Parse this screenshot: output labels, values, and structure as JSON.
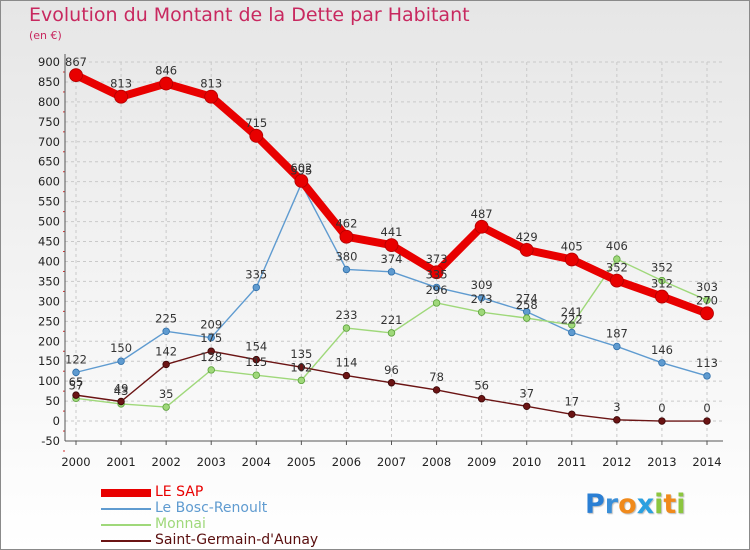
{
  "header": {
    "title": "Evolution du Montant de la Dette par Habitant",
    "unit": "(en €)"
  },
  "logo": {
    "text": "Proxiti",
    "letters": [
      "P",
      "r",
      "o",
      "x",
      "i",
      "t",
      "i"
    ],
    "colors": [
      "#2a7fd4",
      "#3a8fd8",
      "#f08a1c",
      "#2aa0e0",
      "#8cc63f",
      "#f08a1c",
      "#8cc63f"
    ]
  },
  "chart_data": {
    "type": "line",
    "title": "Evolution du Montant de la Dette par Habitant",
    "ylabel": "(en €)",
    "xlabel": "",
    "x": [
      "2000",
      "2001",
      "2002",
      "2003",
      "2004",
      "2005",
      "2006",
      "2007",
      "2008",
      "2009",
      "2010",
      "2011",
      "2012",
      "2013",
      "2014"
    ],
    "ylim": [
      -50,
      900
    ],
    "yticks": [
      -50,
      0,
      50,
      100,
      150,
      200,
      250,
      300,
      350,
      400,
      450,
      500,
      550,
      600,
      650,
      700,
      750,
      800,
      850,
      900
    ],
    "grid": true,
    "legend": "bottom-left",
    "series": [
      {
        "name": "LE SAP",
        "color": "#e80000",
        "values": [
          867,
          813,
          846,
          813,
          715,
          602,
          462,
          441,
          373,
          487,
          429,
          405,
          352,
          312,
          270
        ]
      },
      {
        "name": "Le Bosc-Renoult",
        "color": "#5f9bd0",
        "values": [
          122,
          150,
          225,
          209,
          335,
          595,
          380,
          374,
          335,
          309,
          274,
          222,
          187,
          146,
          113
        ]
      },
      {
        "name": "Monnai",
        "color": "#9fd87a",
        "values": [
          57,
          43,
          35,
          128,
          115,
          102,
          233,
          221,
          296,
          273,
          258,
          241,
          406,
          352,
          303
        ]
      },
      {
        "name": "Saint-Germain-d'Aunay",
        "color": "#6b1414",
        "values": [
          65,
          49,
          142,
          175,
          154,
          135,
          114,
          96,
          78,
          56,
          37,
          17,
          3,
          0,
          0
        ]
      }
    ]
  }
}
